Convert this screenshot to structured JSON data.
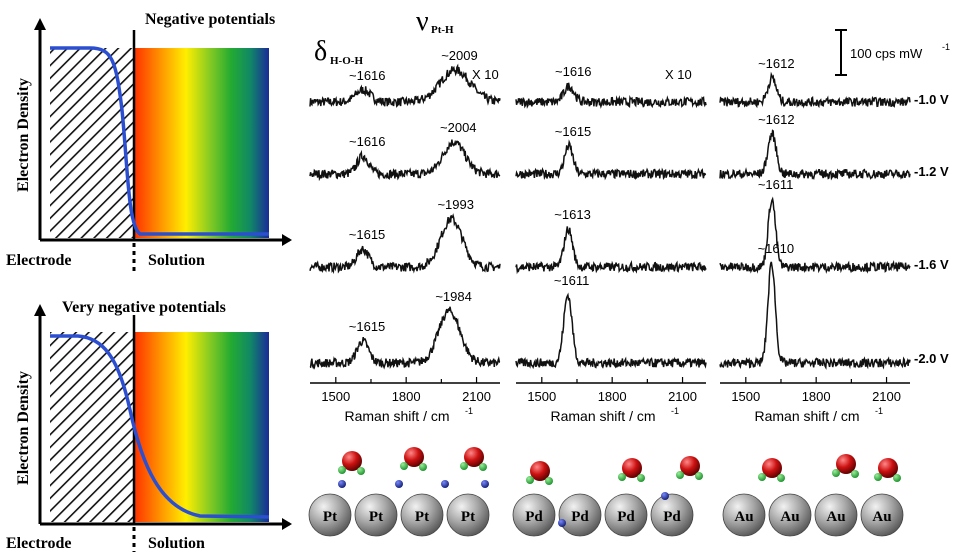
{
  "left_diagrams": [
    {
      "title": "Negative potentials",
      "ylabel": "Electron Density",
      "electrode_label": "Electrode",
      "solution_label": "Solution"
    },
    {
      "title": "Very negative potentials",
      "ylabel": "Electron Density",
      "electrode_label": "Electrode",
      "solution_label": "Solution"
    }
  ],
  "colors": {
    "spectrum": "#111111",
    "density_curve": "#2b4fd0",
    "atom": "#9a9a9a",
    "oxygen": "#cc1111",
    "hydrogen": "#22aa33",
    "adsorbed_h": "#1a2a99"
  },
  "scale_bar_label": "100 cps mW",
  "scale_bar_sup": "-1",
  "potentials": [
    "-1.0 V",
    "-1.2 V",
    "-1.6 V",
    "-2.0 V"
  ],
  "chart_data": [
    {
      "type": "line",
      "metal": "Pt",
      "band_labels": {
        "delta": "δ",
        "delta_sub": "H-O-H",
        "nu": "ν",
        "nu_sub": "Pt-H"
      },
      "multiplier": "X 10",
      "xlabel": "Raman shift / cm",
      "xlabel_sup": "-1",
      "xlim": [
        1390,
        2200
      ],
      "xticks": [
        1500,
        1800,
        2100
      ],
      "series": [
        {
          "potential": "-1.0 V",
          "peaks": [
            {
              "x": 1616,
              "height": 12,
              "width": 45
            },
            {
              "x": 2009,
              "height": 32,
              "width": 90
            }
          ],
          "labels": [
            {
              "text": "~1616",
              "x": 1616
            },
            {
              "text": "~2009",
              "x": 2009
            }
          ]
        },
        {
          "potential": "-1.2 V",
          "peaks": [
            {
              "x": 1616,
              "height": 18,
              "width": 35
            },
            {
              "x": 2004,
              "height": 32,
              "width": 65
            }
          ],
          "labels": [
            {
              "text": "~1616",
              "x": 1616
            },
            {
              "text": "~2004",
              "x": 2004
            }
          ]
        },
        {
          "potential": "-1.6 V",
          "peaks": [
            {
              "x": 1615,
              "height": 18,
              "width": 35
            },
            {
              "x": 1993,
              "height": 48,
              "width": 65
            }
          ],
          "labels": [
            {
              "text": "~1615",
              "x": 1615
            },
            {
              "text": "~1993",
              "x": 1993
            }
          ]
        },
        {
          "potential": "-2.0 V",
          "peaks": [
            {
              "x": 1615,
              "height": 22,
              "width": 35
            },
            {
              "x": 1984,
              "height": 52,
              "width": 65
            }
          ],
          "labels": [
            {
              "text": "~1615",
              "x": 1615
            },
            {
              "text": "~1984",
              "x": 1984
            }
          ]
        }
      ]
    },
    {
      "type": "line",
      "metal": "Pd",
      "multiplier": "X 10",
      "xlabel": "Raman shift / cm",
      "xlabel_sup": "-1",
      "xlim": [
        1390,
        2200
      ],
      "xticks": [
        1500,
        1800,
        2100
      ],
      "series": [
        {
          "potential": "-1.0 V",
          "peaks": [
            {
              "x": 1616,
              "height": 16,
              "width": 30
            }
          ],
          "labels": [
            {
              "text": "~1616",
              "x": 1616
            }
          ]
        },
        {
          "potential": "-1.2 V",
          "peaks": [
            {
              "x": 1615,
              "height": 28,
              "width": 25
            }
          ],
          "labels": [
            {
              "text": "~1615",
              "x": 1615
            }
          ]
        },
        {
          "potential": "-1.6 V",
          "peaks": [
            {
              "x": 1613,
              "height": 38,
              "width": 25
            }
          ],
          "labels": [
            {
              "text": "~1613",
              "x": 1613
            }
          ]
        },
        {
          "potential": "-2.0 V",
          "peaks": [
            {
              "x": 1611,
              "height": 68,
              "width": 25
            }
          ],
          "labels": [
            {
              "text": "~1611",
              "x": 1611
            }
          ]
        }
      ]
    },
    {
      "type": "line",
      "metal": "Au",
      "xlabel": "Raman shift / cm",
      "xlabel_sup": "-1",
      "xlim": [
        1390,
        2200
      ],
      "xticks": [
        1500,
        1800,
        2100
      ],
      "series": [
        {
          "potential": "-1.0 V",
          "peaks": [
            {
              "x": 1612,
              "height": 24,
              "width": 25
            }
          ],
          "labels": [
            {
              "text": "~1612",
              "x": 1612
            }
          ]
        },
        {
          "potential": "-1.2 V",
          "peaks": [
            {
              "x": 1612,
              "height": 40,
              "width": 25
            }
          ],
          "labels": [
            {
              "text": "~1612",
              "x": 1612
            }
          ]
        },
        {
          "potential": "-1.6 V",
          "peaks": [
            {
              "x": 1611,
              "height": 68,
              "width": 22
            }
          ],
          "labels": [
            {
              "text": "~1611",
              "x": 1611
            }
          ]
        },
        {
          "potential": "-2.0 V",
          "peaks": [
            {
              "x": 1610,
              "height": 100,
              "width": 22
            }
          ],
          "labels": [
            {
              "text": "~1610",
              "x": 1610
            }
          ]
        }
      ]
    }
  ]
}
